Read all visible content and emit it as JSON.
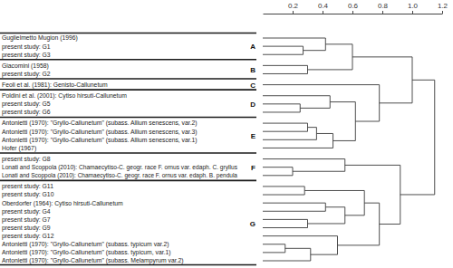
{
  "chart_data": {
    "type": "dendrogram",
    "xlim": [
      0,
      1.2
    ],
    "xticks": [
      0.2,
      0.4,
      0.6,
      0.8,
      {
        "value": 1,
        "label": "1.0"
      },
      1.2
    ],
    "tree": {
      "height": 1.15,
      "children": [
        {
          "height": 1.0,
          "children": [
            {
              "height": 0.6,
              "children": [
                {
                  "height": 0.42,
                  "children": [
                    {
                      "label": "Guglielmetto Mugion (1996)",
                      "group": "A"
                    },
                    {
                      "height": 0.27,
                      "children": [
                        {
                          "label": "present study: G1",
                          "group": "A"
                        },
                        {
                          "label": "present study: G3",
                          "group": "A"
                        }
                      ]
                    }
                  ]
                },
                {
                  "height": 0.3,
                  "children": [
                    {
                      "label": "Giacomini (1958)",
                      "group": "B"
                    },
                    {
                      "label": "present study: G2",
                      "group": "B"
                    }
                  ]
                }
              ]
            },
            {
              "height": 0.78,
              "children": [
                {
                  "label": "Feoli et al. (1981): Genisto-Callunetum",
                  "group": "C"
                },
                {
                  "height": 0.62,
                  "children": [
                    {
                      "height": 0.45,
                      "children": [
                        {
                          "label": "Poldini et al. (2001): Cytiso hirsuti-Callunetum",
                          "group": "D"
                        },
                        {
                          "height": 0.25,
                          "children": [
                            {
                              "label": "present study: G5",
                              "group": "D"
                            },
                            {
                              "label": "present study: G6",
                              "group": "D"
                            }
                          ]
                        }
                      ]
                    },
                    {
                      "height": 0.47,
                      "children": [
                        {
                          "height": 0.36,
                          "children": [
                            {
                              "height": 0.3,
                              "children": [
                                {
                                  "label": "Antonietti (1970): \"Gryllo-Callunetum\" (subass. Allium senescens, var.2)",
                                  "group": "E"
                                },
                                {
                                  "label": "Antonietti (1970): \"Gryllo-Callunetum\" (subass. Allium senescens, var.3)",
                                  "group": "E"
                                }
                              ]
                            },
                            {
                              "label": "Antonietti (1970): \"Gryllo-Callunetum\" (subass. Allium senescens, var.1)",
                              "group": "E"
                            }
                          ]
                        },
                        {
                          "label": "Hofer (1967)",
                          "group": "E"
                        }
                      ]
                    }
                  ]
                }
              ]
            }
          ]
        },
        {
          "height": 0.92,
          "children": [
            {
              "height": 0.55,
              "children": [
                {
                  "label": "present study: G8",
                  "group": "F"
                },
                {
                  "height": 0.2,
                  "children": [
                    {
                      "label": "Lonati and Scoppola (2010): Chamaecytiso-C. geogr. race F. ornus var. edaph. C. gryllus",
                      "group": "F"
                    },
                    {
                      "label": "Lonati and Scoppola (2010): Chamaecytiso-C. geogr. race F. ornus var. edaph. B. pendula",
                      "group": "F"
                    }
                  ]
                }
              ]
            },
            {
              "height": 0.78,
              "children": [
                {
                  "height": 0.68,
                  "children": [
                    {
                      "height": 0.28,
                      "children": [
                        {
                          "label": "present study: G11",
                          "group": "G"
                        },
                        {
                          "label": "present study: G10",
                          "group": "G"
                        }
                      ]
                    },
                    {
                      "height": 0.55,
                      "children": [
                        {
                          "height": 0.42,
                          "children": [
                            {
                              "label": "Oberdorfer (1964): Cytiso hirsuti-Callunetum",
                              "group": "G"
                            },
                            {
                              "label": "present study: G4",
                              "group": "G"
                            }
                          ]
                        },
                        {
                          "height": 0.3,
                          "children": [
                            {
                              "label": "present study: G7",
                              "group": "G"
                            },
                            {
                              "label": "present study: G9",
                              "group": "G"
                            }
                          ]
                        }
                      ]
                    }
                  ]
                },
                {
                  "height": 0.5,
                  "children": [
                    {
                      "label": "present study: G12",
                      "group": "G"
                    },
                    {
                      "height": 0.32,
                      "children": [
                        {
                          "height": 0.15,
                          "children": [
                            {
                              "label": "Antonietti (1970): \"Gryllo-Callunetum\" (subass. typicum var.2)",
                              "group": "G"
                            },
                            {
                              "label": "Antonietti (1970): \"Gryllo-Callunetum\" (subass. typicum, var.1)",
                              "group": "G"
                            }
                          ]
                        },
                        {
                          "label": "Antonietti (1970): \"Gryllo-Callunetum\" (subass. Melampyrum var.2)",
                          "group": "G"
                        }
                      ]
                    }
                  ]
                }
              ]
            }
          ]
        }
      ]
    }
  }
}
